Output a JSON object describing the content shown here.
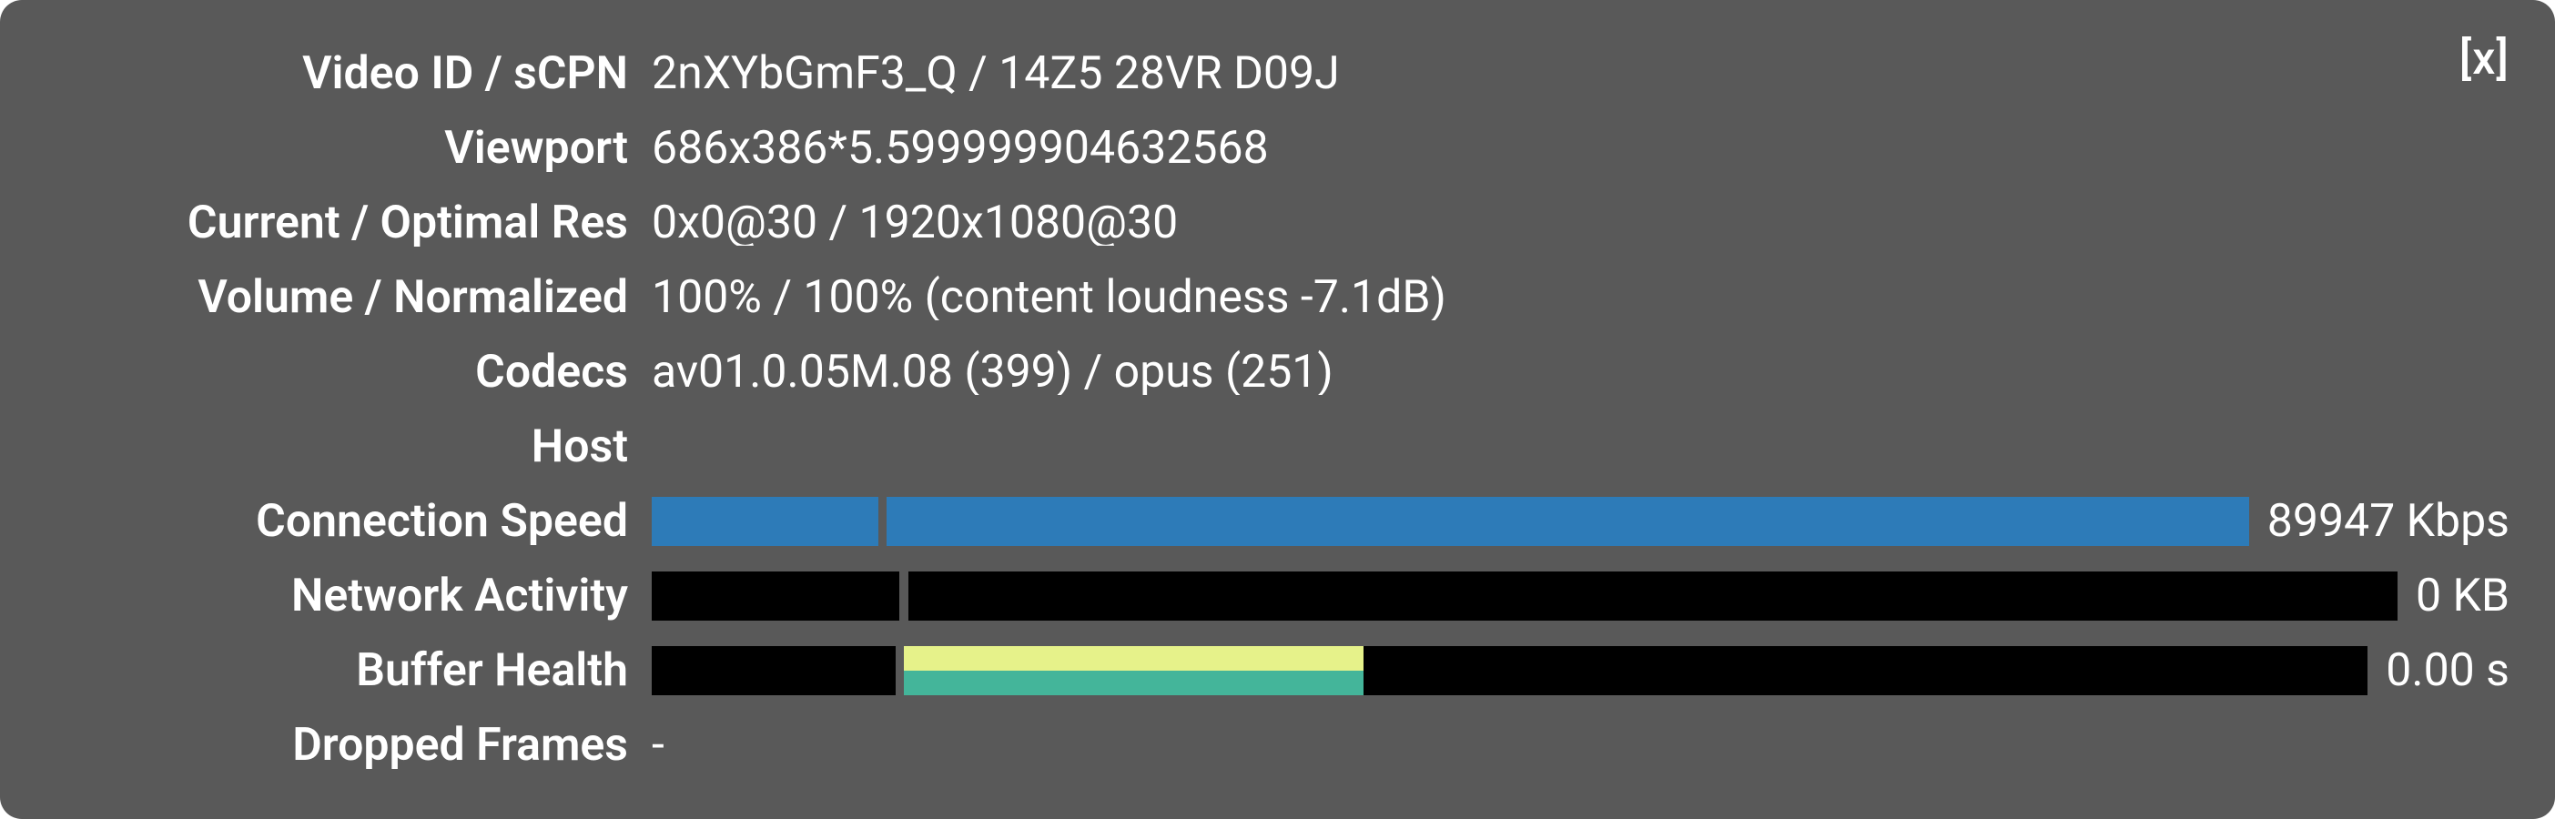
{
  "colors": {
    "panel_bg": "#595959",
    "text": "#ffffff",
    "bar_track_bg": "#000000",
    "divider": "#595959",
    "conn_speed_fill": "#2d7bb8",
    "buffer_green": "#44b59a",
    "buffer_yellow": "#e6f28a"
  },
  "close_label": "[x]",
  "rows": {
    "video_id": {
      "label": "Video ID / sCPN",
      "value": "2nXYbGmF3_Q / 14Z5 28VR D09J"
    },
    "viewport": {
      "label": "Viewport",
      "value": "686x386*5.599999904632568"
    },
    "resolution": {
      "label": "Current / Optimal Res",
      "value": "0x0@30 / 1920x1080@30"
    },
    "volume": {
      "label": "Volume / Normalized",
      "value": "100% / 100% (content loudness -7.1dB)"
    },
    "codecs": {
      "label": "Codecs",
      "value": "av01.0.05M.08 (399) / opus (251)"
    },
    "host": {
      "label": "Host",
      "value": ""
    },
    "conn_speed": {
      "label": "Connection Speed",
      "value_text": "89947 Kbps",
      "segments": [
        {
          "left_pct": 0.0,
          "width_pct": 14.2,
          "color": "#2d7bb8"
        },
        {
          "left_pct": 14.7,
          "width_pct": 85.3,
          "color": "#2d7bb8"
        }
      ],
      "divider_gap": {
        "left_pct": 14.2,
        "width_pct": 0.5,
        "color": "#595959"
      }
    },
    "network_activity": {
      "label": "Network Activity",
      "value_text": "0 KB",
      "segments": [],
      "divider_gap": {
        "left_pct": 14.2,
        "width_pct": 0.5,
        "color": "#595959"
      }
    },
    "buffer_health": {
      "label": "Buffer Health",
      "value_text": "0.00 s",
      "segments": [
        {
          "left_pct": 14.7,
          "width_pct": 26.8,
          "color": "#44b59a"
        },
        {
          "left_pct": 14.7,
          "width_pct": 26.8,
          "color": "#e6f28a",
          "half_height": true
        }
      ],
      "divider_gap": {
        "left_pct": 14.2,
        "width_pct": 0.5,
        "color": "#595959"
      }
    },
    "dropped_frames": {
      "label": "Dropped Frames",
      "value": "-"
    }
  }
}
